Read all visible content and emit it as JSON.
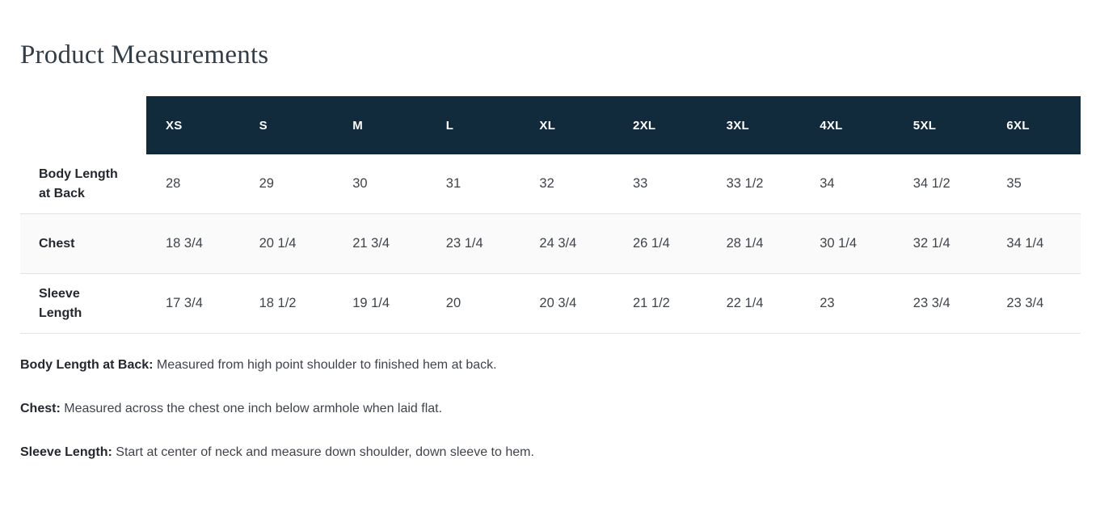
{
  "page": {
    "title": "Product Measurements"
  },
  "colors": {
    "header_bg": "#112b3d",
    "header_text": "#ffffff",
    "stripe_bg": "#fafafa",
    "divider": "#e2e2e2",
    "title_text": "#333d48",
    "label_text": "#23282f",
    "value_text": "#3f444b"
  },
  "table": {
    "size_headers": [
      "XS",
      "S",
      "M",
      "L",
      "XL",
      "2XL",
      "3XL",
      "4XL",
      "5XL",
      "6XL"
    ],
    "rows": [
      {
        "label": "Body Length at Back",
        "values": [
          "28",
          "29",
          "30",
          "31",
          "32",
          "33",
          "33 1/2",
          "34",
          "34 1/2",
          "35"
        ]
      },
      {
        "label": "Chest",
        "values": [
          "18 3/4",
          "20 1/4",
          "21 3/4",
          "23 1/4",
          "24 3/4",
          "26 1/4",
          "28 1/4",
          "30 1/4",
          "32 1/4",
          "34 1/4"
        ]
      },
      {
        "label": "Sleeve Length",
        "values": [
          "17 3/4",
          "18 1/2",
          "19 1/4",
          "20",
          "20 3/4",
          "21 1/2",
          "22 1/4",
          "23",
          "23 3/4",
          "23 3/4"
        ]
      }
    ]
  },
  "definitions": [
    {
      "term": "Body Length at Back:",
      "description": "Measured from high point shoulder to finished hem at back."
    },
    {
      "term": "Chest:",
      "description": "Measured across the chest one inch below armhole when laid flat."
    },
    {
      "term": "Sleeve Length:",
      "description": "Start at center of neck and measure down shoulder, down sleeve to hem."
    }
  ]
}
